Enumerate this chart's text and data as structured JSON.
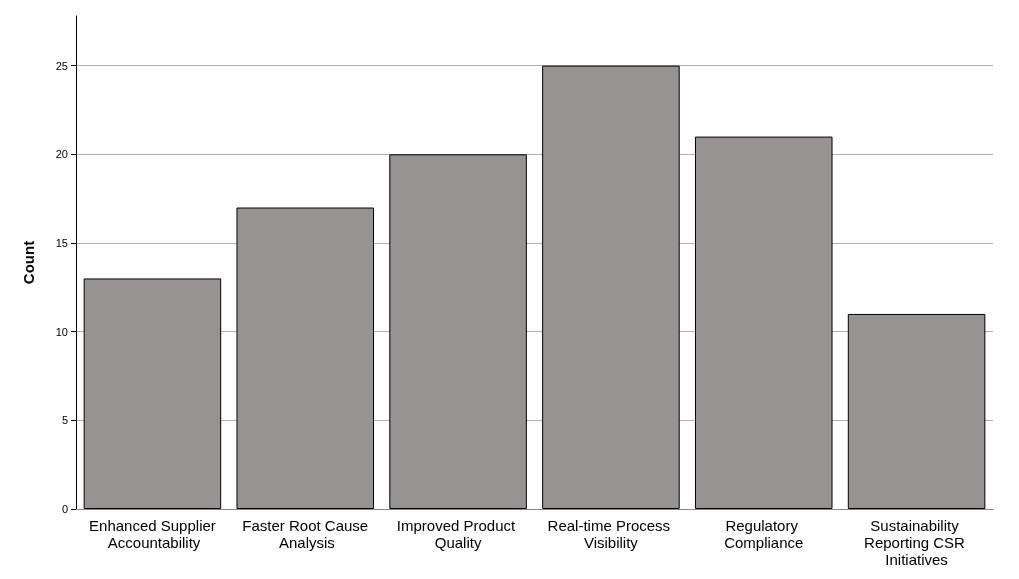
{
  "chart_data": {
    "type": "bar",
    "ylabel": "Count",
    "categories": [
      "Enhanced Supplier Accountability",
      "Faster Root Cause Analysis",
      "Improved Product Quality",
      "Real-time Process Visibility",
      "Regulatory Compliance",
      "Sustainability Reporting CSR Initiatives"
    ],
    "values": [
      13,
      17,
      20,
      25,
      21,
      11
    ],
    "color": "#969392",
    "ylim": [
      0,
      27.8
    ],
    "yticks": [
      0,
      5,
      10,
      15,
      20,
      25
    ],
    "grid": "y"
  }
}
